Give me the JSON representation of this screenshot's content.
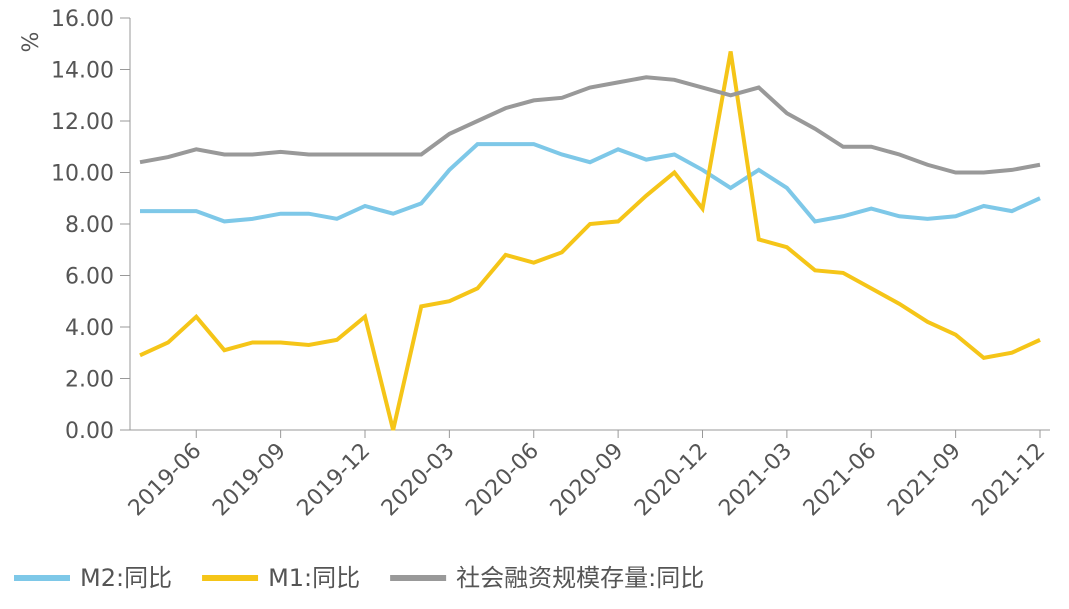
{
  "chart_data": {
    "type": "line",
    "y_label": "%",
    "categories": [
      null,
      null,
      "2019-06",
      null,
      null,
      "2019-09",
      null,
      null,
      "2019-12",
      null,
      null,
      "2020-03",
      null,
      null,
      "2020-06",
      null,
      null,
      "2020-09",
      null,
      null,
      "2020-12",
      null,
      null,
      "2021-03",
      null,
      null,
      "2021-06",
      null,
      null,
      "2021-09",
      null,
      null,
      "2021-12"
    ],
    "series": [
      {
        "name": "M2:同比",
        "color": "#7ec8e8",
        "values": [
          8.5,
          8.5,
          8.5,
          8.1,
          8.2,
          8.4,
          8.4,
          8.2,
          8.7,
          8.4,
          8.8,
          10.1,
          11.1,
          11.1,
          11.1,
          10.7,
          10.4,
          10.9,
          10.5,
          10.7,
          10.1,
          9.4,
          10.1,
          9.4,
          8.1,
          8.3,
          8.6,
          8.3,
          8.2,
          8.3,
          8.7,
          8.5,
          9.0
        ]
      },
      {
        "name": "M1:同比",
        "color": "#f5c518",
        "values": [
          2.9,
          3.4,
          4.4,
          3.1,
          3.4,
          3.4,
          3.3,
          3.5,
          4.4,
          0.0,
          4.8,
          5.0,
          5.5,
          6.8,
          6.5,
          6.9,
          8.0,
          8.1,
          9.1,
          10.0,
          8.6,
          14.7,
          7.4,
          7.1,
          6.2,
          6.1,
          5.5,
          4.9,
          4.2,
          3.7,
          2.8,
          3.0,
          3.5
        ]
      },
      {
        "name": "社会融资规模存量:同比",
        "color": "#999999",
        "values": [
          10.4,
          10.6,
          10.9,
          10.7,
          10.7,
          10.8,
          10.7,
          10.7,
          10.7,
          10.7,
          10.7,
          11.5,
          12.0,
          12.5,
          12.8,
          12.9,
          13.3,
          13.5,
          13.7,
          13.6,
          13.3,
          13.0,
          13.3,
          12.3,
          11.7,
          11.0,
          11.0,
          10.7,
          10.3,
          10.0,
          10.0,
          10.1,
          10.3
        ]
      }
    ],
    "ylim": [
      0,
      16
    ],
    "yticks": [
      {
        "value": 0,
        "label": "0.00"
      },
      {
        "value": 2,
        "label": "2.00"
      },
      {
        "value": 4,
        "label": "4.00"
      },
      {
        "value": 6,
        "label": "6.00"
      },
      {
        "value": 8,
        "label": "8.00"
      },
      {
        "value": 10,
        "label": "10.00"
      },
      {
        "value": 12,
        "label": "12.00"
      },
      {
        "value": 14,
        "label": "14.00"
      },
      {
        "value": 16,
        "label": "16.00"
      }
    ]
  }
}
